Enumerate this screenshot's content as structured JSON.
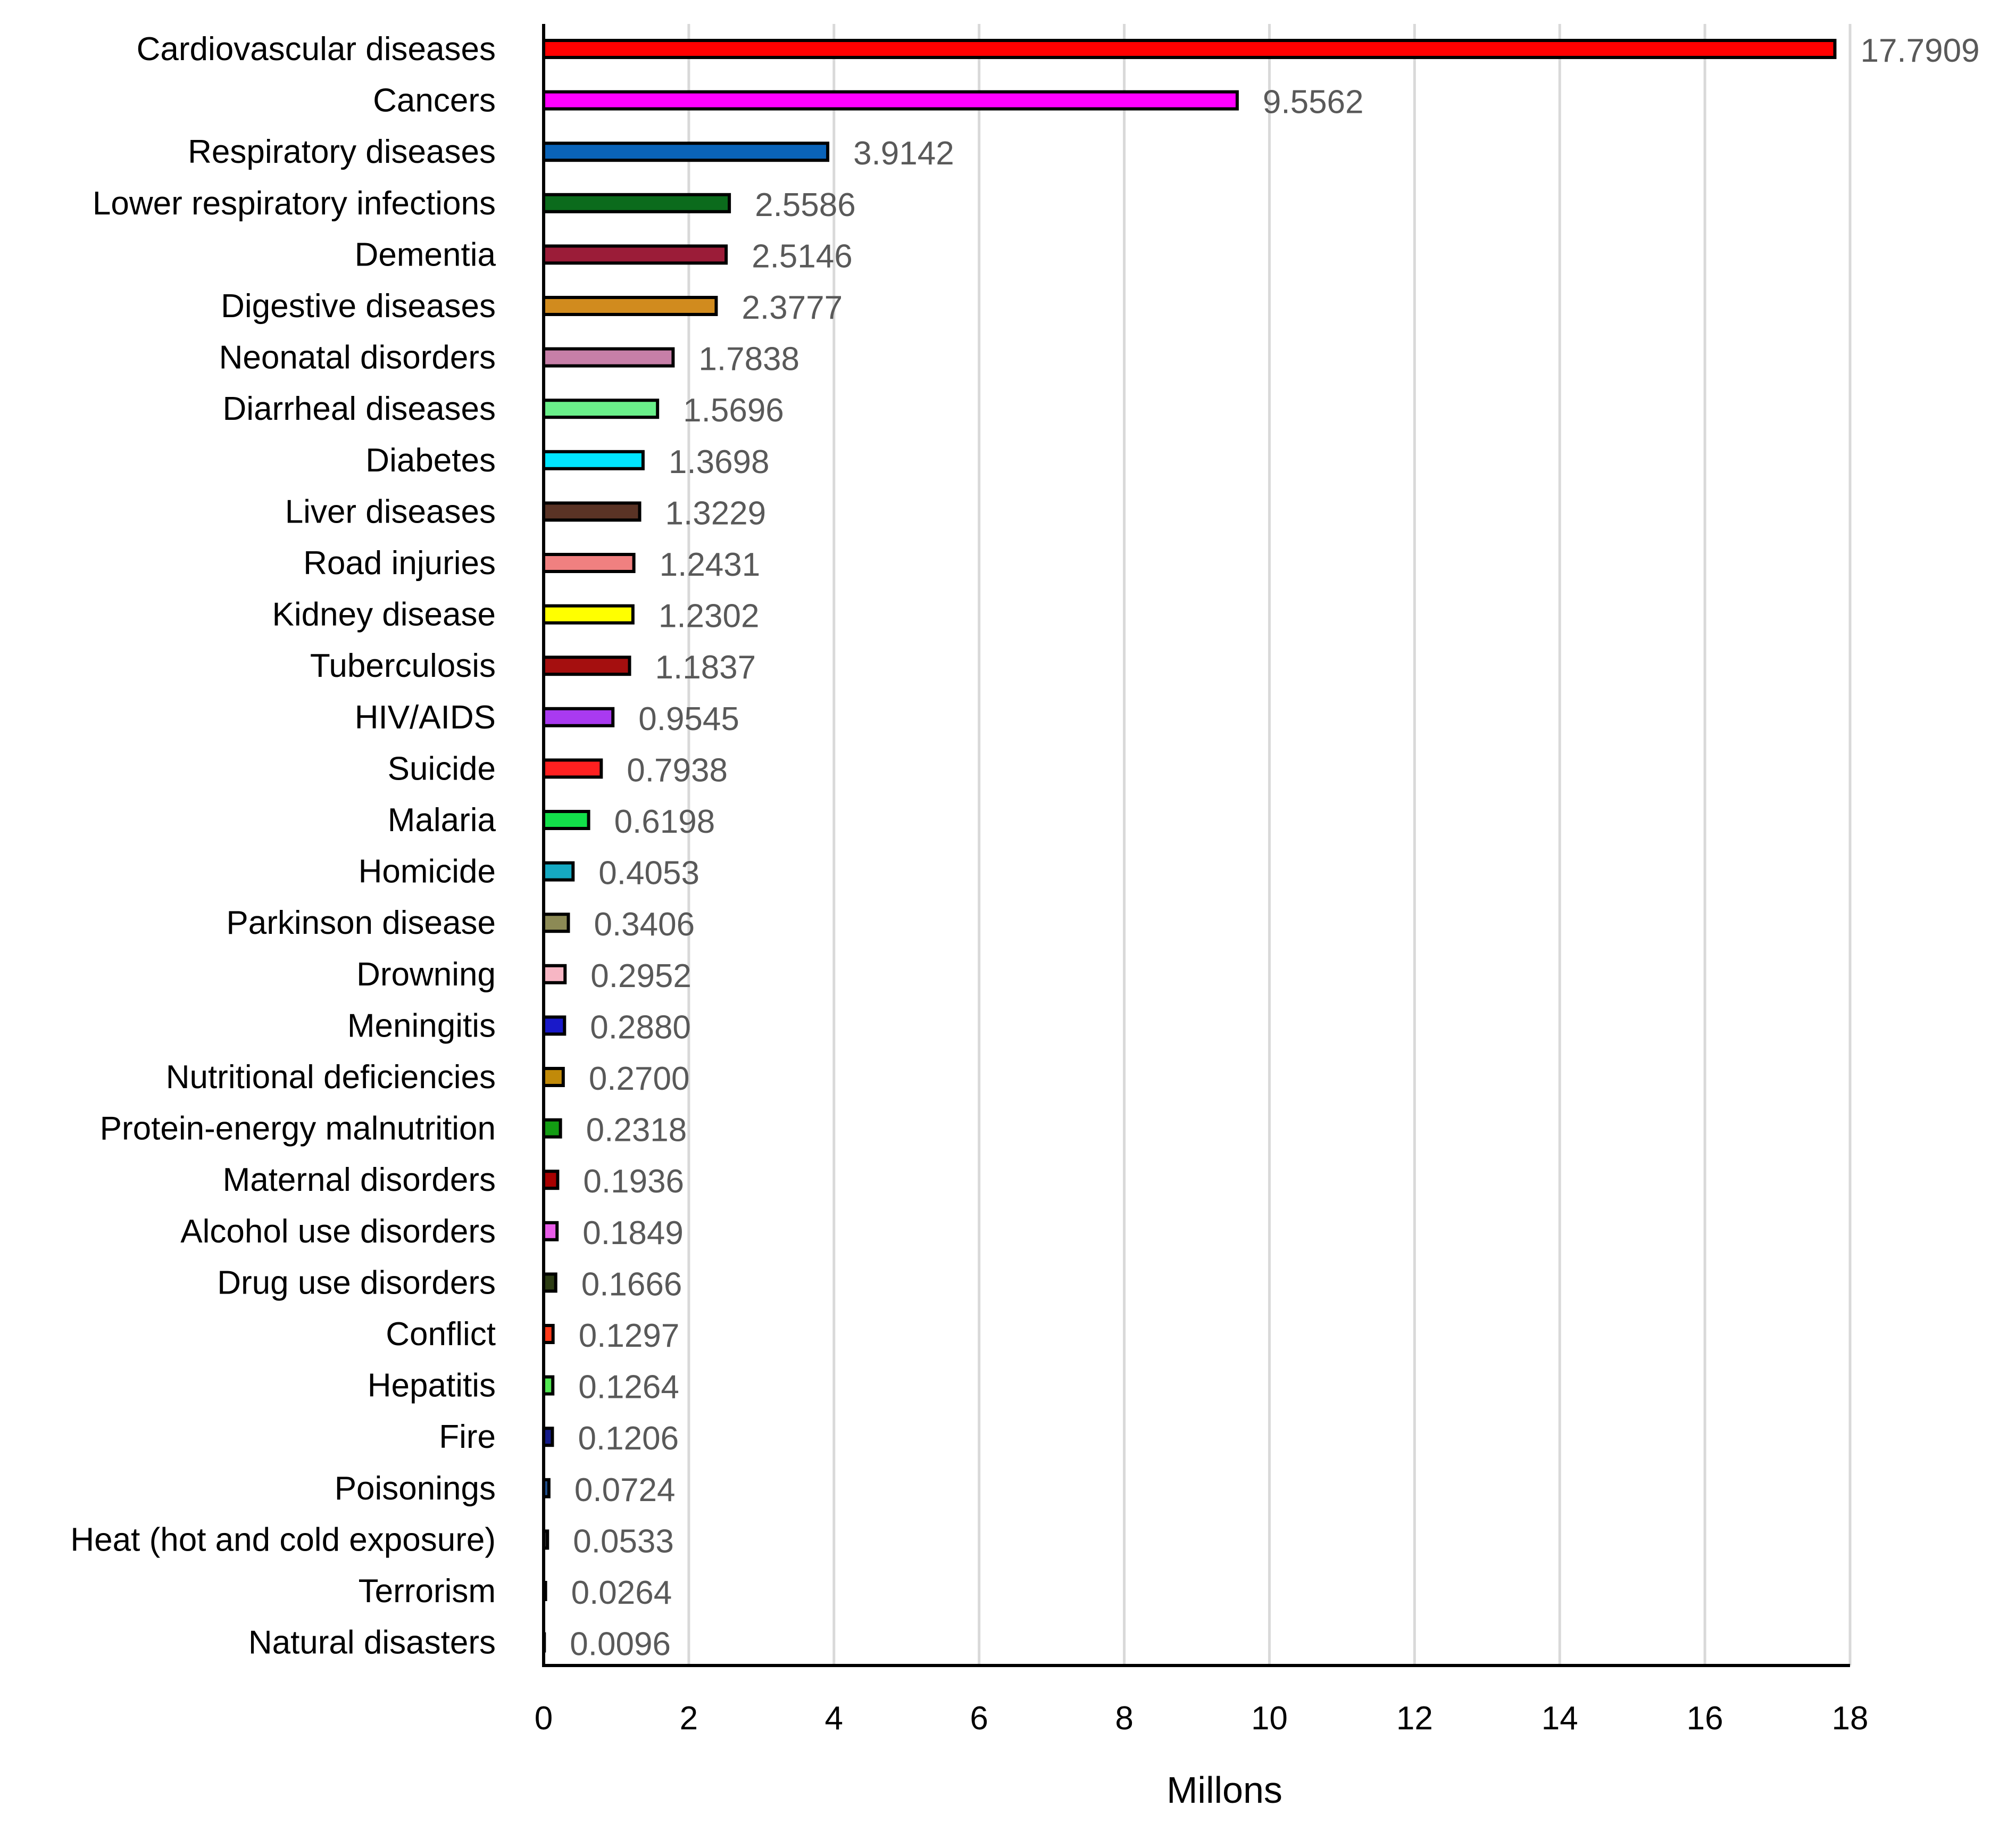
{
  "chart_data": {
    "type": "bar",
    "orientation": "horizontal",
    "title": "",
    "xlabel": "Millons",
    "ylabel": "",
    "xlim": [
      0,
      18
    ],
    "xticks": [
      0,
      2,
      4,
      6,
      8,
      10,
      12,
      14,
      16,
      18
    ],
    "grid": true,
    "legend": "none",
    "categories": [
      "Cardiovascular diseases",
      "Cancers",
      "Respiratory diseases",
      "Lower respiratory infections",
      "Dementia",
      "Digestive diseases",
      "Neonatal disorders",
      "Diarrheal diseases",
      "Diabetes",
      "Liver diseases",
      "Road injuries",
      "Kidney disease",
      "Tuberculosis",
      "HIV/AIDS",
      "Suicide",
      "Malaria",
      "Homicide",
      "Parkinson disease",
      "Drowning",
      "Meningitis",
      "Nutritional deficiencies",
      "Protein-energy malnutrition",
      "Maternal disorders",
      "Alcohol use disorders",
      "Drug use disorders",
      "Conflict",
      "Hepatitis",
      "Fire",
      "Poisonings",
      "Heat (hot and cold exposure)",
      "Terrorism",
      "Natural disasters"
    ],
    "values": [
      17.7909,
      9.5562,
      3.9142,
      2.5586,
      2.5146,
      2.3777,
      1.7838,
      1.5696,
      1.3698,
      1.3229,
      1.2431,
      1.2302,
      1.1837,
      0.9545,
      0.7938,
      0.6198,
      0.4053,
      0.3406,
      0.2952,
      0.288,
      0.27,
      0.2318,
      0.1936,
      0.1849,
      0.1666,
      0.1297,
      0.1264,
      0.1206,
      0.0724,
      0.0533,
      0.0264,
      0.0096
    ],
    "value_labels": [
      "17.7909",
      "9.5562",
      "3.9142",
      "2.5586",
      "2.5146",
      "2.3777",
      "1.7838",
      "1.5696",
      "1.3698",
      "1.3229",
      "1.2431",
      "1.2302",
      "1.1837",
      "0.9545",
      "0.7938",
      "0.6198",
      "0.4053",
      "0.3406",
      "0.2952",
      "0.2880",
      "0.2700",
      "0.2318",
      "0.1936",
      "0.1849",
      "0.1666",
      "0.1297",
      "0.1264",
      "0.1206",
      "0.0724",
      "0.0533",
      "0.0264",
      "0.0096"
    ],
    "colors": [
      "#ff0000",
      "#ff00ff",
      "#0a63b8",
      "#0b6b1c",
      "#9b1c38",
      "#d18b1e",
      "#c77fa8",
      "#6af08a",
      "#00e5ff",
      "#5a3325",
      "#f08080",
      "#ffff00",
      "#a50f0f",
      "#a93af0",
      "#ff2020",
      "#12e04a",
      "#15a9c2",
      "#8c8a55",
      "#f7b6c4",
      "#1919c9",
      "#c18a09",
      "#139c13",
      "#a80000",
      "#e85ce8",
      "#2c3c13",
      "#ff3a1a",
      "#52e852",
      "#141b8a",
      "#1f4f8f",
      "#333333",
      "#333333",
      "#333333"
    ]
  }
}
